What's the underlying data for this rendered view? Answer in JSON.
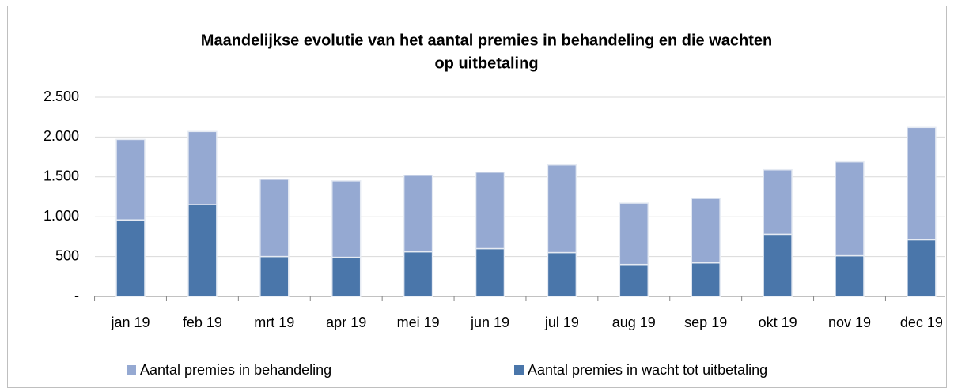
{
  "chart_data": {
    "type": "bar",
    "title": [
      "Maandelijkse evolutie van het aantal premies in behandeling en die wachten",
      "op uitbetaling"
    ],
    "categories": [
      "jan 19",
      "feb 19",
      "mrt 19",
      "apr 19",
      "mei 19",
      "jun 19",
      "jul 19",
      "aug 19",
      "sep 19",
      "okt 19",
      "nov 19",
      "dec 19"
    ],
    "series": [
      {
        "name": "Aantal premies in wacht tot uitbetaling",
        "color": "#4a76aa",
        "values": [
          960,
          1150,
          500,
          490,
          560,
          600,
          550,
          400,
          420,
          780,
          510,
          710
        ]
      },
      {
        "name": "Aantal premies in behandeling",
        "color": "#95a9d2",
        "values": [
          1010,
          920,
          970,
          960,
          960,
          960,
          1100,
          770,
          810,
          810,
          1180,
          1410
        ]
      }
    ],
    "stacked": true,
    "ylim": [
      0,
      2500
    ],
    "yticks": [
      {
        "value": 0,
        "label": "-"
      },
      500,
      {
        "value": 1000,
        "label": "1.000"
      },
      {
        "value": 1500,
        "label": "1.500"
      },
      {
        "value": 2000,
        "label": "2.000"
      },
      {
        "value": 2500,
        "label": "2.500"
      }
    ],
    "grid": true,
    "legend": "bottom"
  }
}
